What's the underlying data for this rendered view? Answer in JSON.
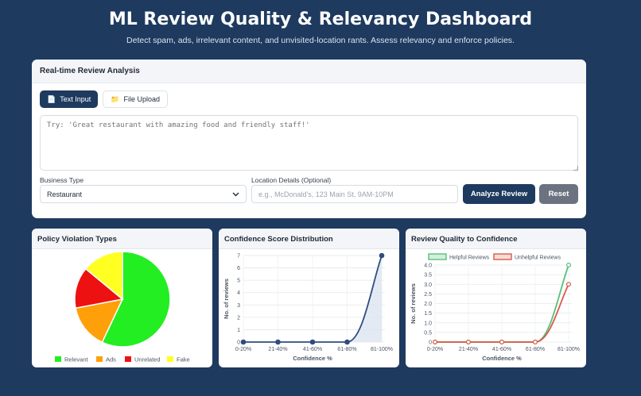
{
  "header": {
    "title": "ML Review Quality & Relevancy Dashboard",
    "subtitle": "Detect spam, ads, irrelevant content, and unvisited-location rants. Assess relevancy and enforce policies."
  },
  "analysis": {
    "title": "Real-time Review Analysis",
    "tabs": [
      {
        "label": "Text Input",
        "icon": "memo-icon",
        "active": true
      },
      {
        "label": "File Upload",
        "icon": "folder-icon",
        "active": false
      }
    ],
    "review_placeholder": "Try: 'Great restaurant with amazing food and friendly staff!'",
    "business_type_label": "Business Type",
    "business_type_value": "Restaurant",
    "location_label": "Location Details (Optional)",
    "location_placeholder": "e.g., McDonald's, 123 Main St, 9AM-10PM",
    "analyze_label": "Analyze Review",
    "reset_label": "Reset"
  },
  "charts": {
    "policy_title": "Policy Violation Types",
    "confidence_title": "Confidence Score Distribution",
    "quality_title": "Review Quality to Confidence"
  },
  "colors": {
    "navy": "#1e3a5f",
    "relevant": "#22ee22",
    "ads": "#ffa00a",
    "unrelated": "#ee1111",
    "fake": "#ffff22",
    "helpful": "#57c07a",
    "unhelpful": "#d85a4a",
    "confidence_line": "#2f4d7e"
  },
  "chart_data": [
    {
      "type": "pie",
      "title": "Policy Violation Types",
      "categories": [
        "Relevant",
        "Ads",
        "Unrelated",
        "Fake"
      ],
      "values": [
        57,
        15,
        14,
        14
      ],
      "legend": "bottom"
    },
    {
      "type": "line",
      "title": "Confidence Score Distribution",
      "categories": [
        "0-20%",
        "21-40%",
        "41-60%",
        "61-80%",
        "81-100%"
      ],
      "values": [
        0,
        0,
        0,
        0,
        7
      ],
      "xlabel": "Confidence %",
      "ylabel": "No. of reviews",
      "ylim": [
        0,
        7
      ],
      "grid": true,
      "filled": true
    },
    {
      "type": "line",
      "title": "Review Quality to Confidence",
      "categories": [
        "0-20%",
        "21-40%",
        "41-60%",
        "61-80%",
        "81-100%"
      ],
      "series": [
        {
          "name": "Helpful Reviews",
          "values": [
            0,
            0,
            0,
            0,
            4
          ]
        },
        {
          "name": "Unhelpful Reviews",
          "values": [
            0,
            0,
            0,
            0,
            3
          ]
        }
      ],
      "xlabel": "Confidence %",
      "ylabel": "No. of reviews",
      "ylim": [
        0,
        4
      ],
      "yticks": [
        "0",
        "0.5",
        "1.0",
        "1.5",
        "2.0",
        "2.5",
        "3.0",
        "3.5",
        "4.0"
      ],
      "legend": "top",
      "grid": true
    }
  ]
}
